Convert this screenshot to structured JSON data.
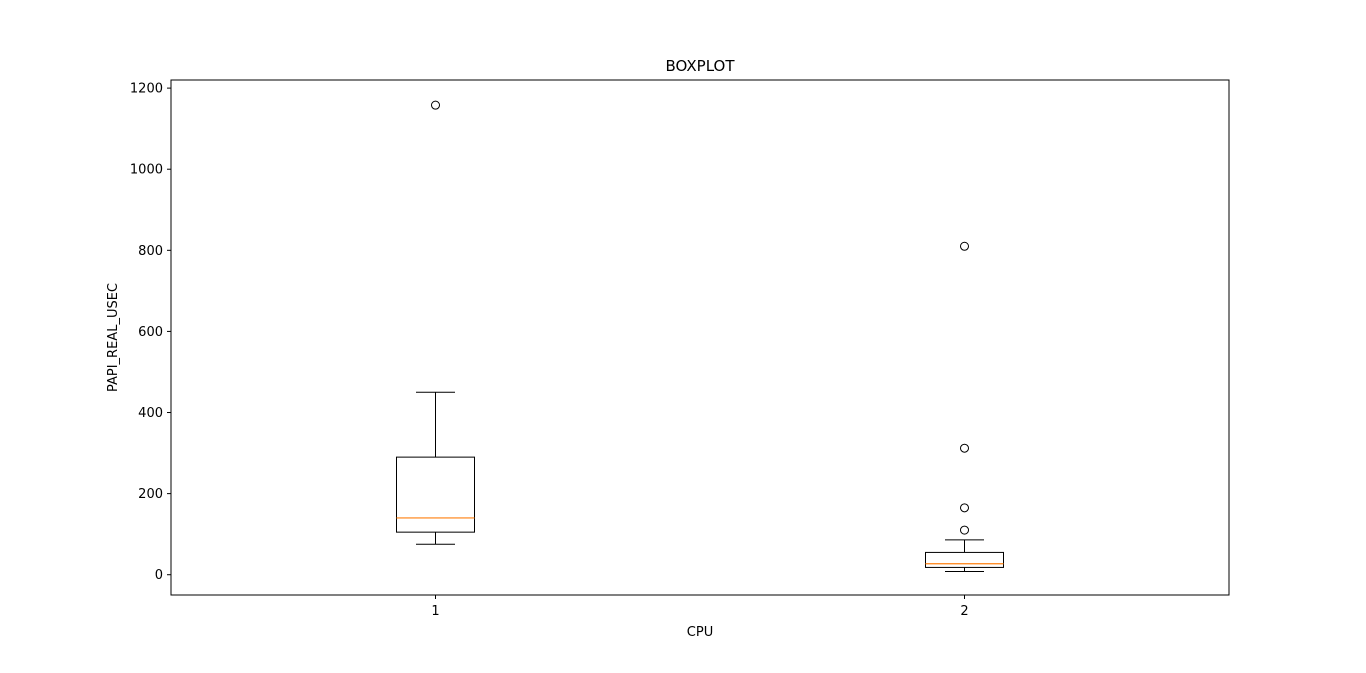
{
  "colors": {
    "background": "#ffffff",
    "axes": "#000000",
    "box": "#000000",
    "median": "#ff7f0e",
    "flier_edge": "#000000"
  },
  "chart_data": {
    "type": "boxplot",
    "title": "BOXPLOT",
    "xlabel": "CPU",
    "ylabel": "PAPI_REAL_USEC",
    "categories": [
      "1",
      "2"
    ],
    "ylim": [
      -50,
      1220
    ],
    "yticks": [
      0,
      200,
      400,
      600,
      800,
      1000,
      1200
    ],
    "xlim": [
      0.5,
      2.5
    ],
    "grid": false,
    "boxes": [
      {
        "label": "1",
        "whisker_low": 75,
        "q1": 105,
        "median": 140,
        "q3": 290,
        "whisker_high": 450,
        "fliers": [
          1158
        ]
      },
      {
        "label": "2",
        "whisker_low": 8,
        "q1": 18,
        "median": 27,
        "q3": 55,
        "whisker_high": 86,
        "fliers": [
          110,
          165,
          312,
          810
        ]
      }
    ]
  }
}
